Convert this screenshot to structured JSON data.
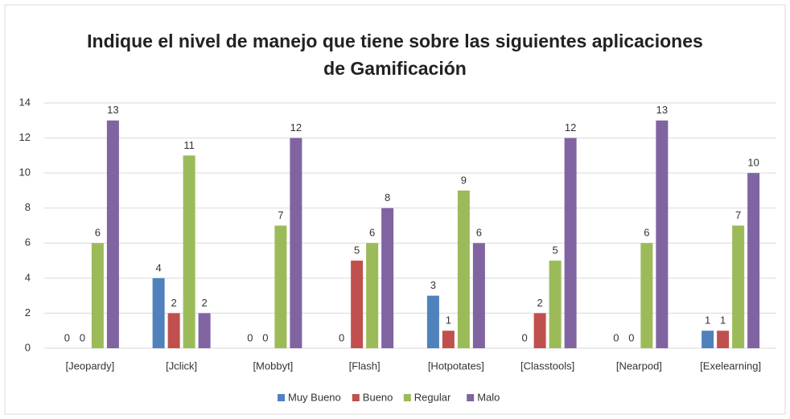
{
  "chart_data": {
    "type": "bar",
    "title": "Indique el nivel de manejo que tiene sobre las siguientes aplicaciones de Gamificación",
    "categories": [
      "[Jeopardy]",
      "[Jclick]",
      "[Mobbyt]",
      "[Flash]",
      "[Hotpotates]",
      "[Classtools]",
      "[Nearpod]",
      "[Exelearning]"
    ],
    "series": [
      {
        "name": "Muy Bueno",
        "color": "#4f81bd",
        "values": [
          0,
          4,
          0,
          0,
          3,
          0,
          0,
          1
        ]
      },
      {
        "name": "Bueno",
        "color": "#c0504d",
        "values": [
          0,
          2,
          0,
          5,
          1,
          2,
          0,
          1
        ]
      },
      {
        "name": "Regular",
        "color": "#9bbb59",
        "values": [
          6,
          11,
          7,
          6,
          9,
          5,
          6,
          7
        ]
      },
      {
        "name": "Malo",
        "color": "#8064a2",
        "values": [
          13,
          2,
          12,
          8,
          6,
          12,
          13,
          10
        ]
      }
    ],
    "ylim": [
      0,
      14
    ],
    "yticks": [
      0,
      2,
      4,
      6,
      8,
      10,
      12,
      14
    ],
    "grid": true,
    "legend": "bottom"
  }
}
